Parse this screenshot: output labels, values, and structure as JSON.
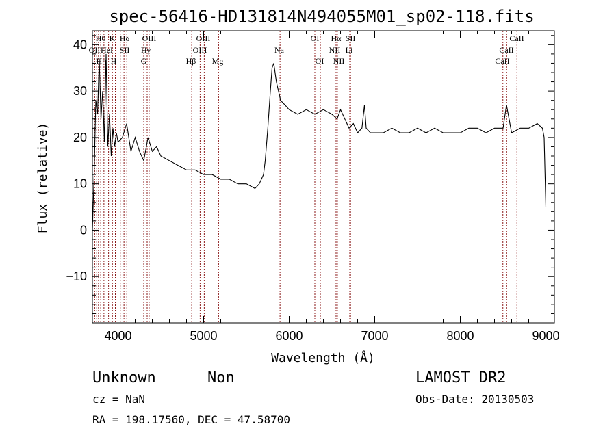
{
  "chart_data": {
    "type": "line",
    "title": "spec-56416-HD131814N494055M01_sp02-118.fits",
    "xlabel": "Wavelength (Å)",
    "ylabel": "Flux (relative)",
    "xlim": [
      3700,
      9100
    ],
    "ylim": [
      -20,
      43
    ],
    "x_ticks": [
      4000,
      5000,
      6000,
      7000,
      8000,
      9000
    ],
    "x_tick_labels": [
      "4000",
      "5000",
      "6000",
      "7000",
      "8000",
      "9000"
    ],
    "y_ticks": [
      -10,
      0,
      10,
      20,
      30,
      40
    ],
    "y_tick_labels": [
      "−10",
      "0",
      "10",
      "20",
      "30",
      "40"
    ],
    "grid": false,
    "series": [
      {
        "x": [
          3700,
          3720,
          3740,
          3760,
          3780,
          3800,
          3820,
          3840,
          3860,
          3880,
          3900,
          3920,
          3940,
          3960,
          3980,
          4000,
          4050,
          4100,
          4150,
          4200,
          4250,
          4300,
          4350,
          4400,
          4450,
          4500,
          4600,
          4700,
          4800,
          4900,
          5000,
          5100,
          5200,
          5300,
          5400,
          5500,
          5600,
          5650,
          5700,
          5720,
          5750,
          5780,
          5800,
          5820,
          5850,
          5900,
          5950,
          6000,
          6100,
          6200,
          6300,
          6400,
          6500,
          6560,
          6600,
          6650,
          6700,
          6750,
          6800,
          6850,
          6880,
          6900,
          6950,
          7000,
          7100,
          7200,
          7300,
          7400,
          7500,
          7600,
          7700,
          7800,
          7900,
          8000,
          8100,
          8200,
          8300,
          8400,
          8500,
          8540,
          8600,
          8700,
          8800,
          8900,
          8960,
          8980,
          9000
        ],
        "y": [
          0,
          12,
          28,
          25,
          37,
          24,
          30,
          19,
          38,
          18,
          25,
          16,
          22,
          18,
          21,
          19,
          20,
          23,
          17,
          20,
          17,
          15,
          20,
          17,
          18,
          16,
          15,
          14,
          13,
          13,
          12,
          12,
          11,
          11,
          10,
          10,
          9,
          10,
          12,
          15,
          22,
          30,
          35,
          36,
          32,
          28,
          27,
          26,
          25,
          26,
          25,
          26,
          25,
          24,
          26,
          24,
          22,
          23,
          21,
          22,
          27,
          22,
          21,
          21,
          21,
          22,
          21,
          21,
          22,
          21,
          22,
          21,
          21,
          21,
          22,
          22,
          21,
          22,
          22,
          27,
          21,
          22,
          22,
          23,
          22,
          20,
          5
        ]
      }
    ],
    "annotations": [
      "OII",
      "Hθ",
      "Hη",
      "K",
      "HeI",
      "SII",
      "H",
      "Hδ",
      "OIII",
      "Hγ",
      "G",
      "Hβ",
      "OIII",
      "OIII",
      "Mg",
      "Na",
      "OI",
      "OI",
      "Hα",
      "NII",
      "NII",
      "SII",
      "Li",
      "CaII",
      "CaII",
      "CaII"
    ]
  },
  "info": {
    "class_text": "Unknown",
    "subclass_text": "Non",
    "survey": "LAMOST DR2",
    "cz": "cz = NaN",
    "obs_date": "Obs-Date: 20130503",
    "coords": "RA = 198.17560, DEC =  47.58700"
  },
  "colors": {
    "line": "#000000",
    "marker": "#8b1a1a",
    "axes": "#000000"
  }
}
